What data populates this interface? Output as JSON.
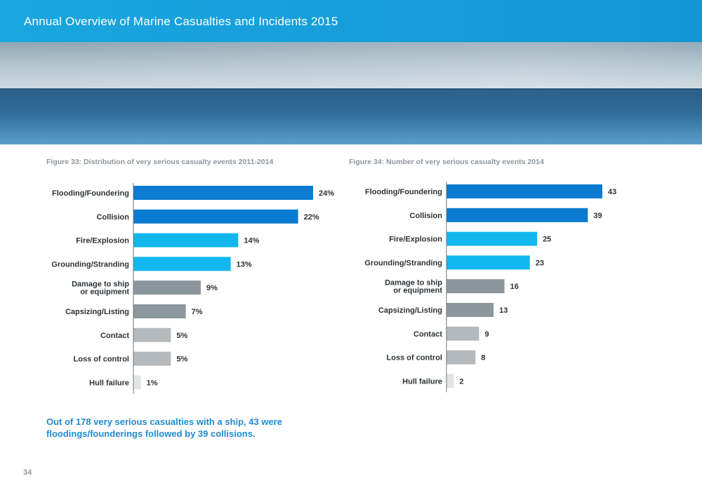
{
  "header": {
    "title": "Annual Overview of Marine Casualties and Incidents 2015"
  },
  "colors": {
    "header_blue": "#1a9fdb",
    "dark_blue": "#0a7bd0",
    "light_blue": "#12b7ef",
    "dark_grey": "#8c969d",
    "mid_grey": "#b3b9bd",
    "light_grey": "#e1e3e4",
    "summary_blue": "#1e8bd3"
  },
  "chart_data": [
    {
      "type": "bar",
      "orientation": "horizontal",
      "title": "Figure 33: Distribution of very serious casualty events 2011-2014",
      "categories": [
        [
          "Flooding/Foundering"
        ],
        [
          "Collision"
        ],
        [
          "Fire/Explosion"
        ],
        [
          "Grounding/Stranding"
        ],
        [
          "Damage to ship",
          "or equipment"
        ],
        [
          "Capsizing/Listing"
        ],
        [
          "Contact"
        ],
        [
          "Loss of control"
        ],
        [
          "Hull failure"
        ]
      ],
      "values": [
        24,
        22,
        14,
        13,
        9,
        7,
        5,
        5,
        1
      ],
      "value_labels": [
        "24%",
        "22%",
        "14%",
        "13%",
        "9%",
        "7%",
        "5%",
        "5%",
        "1%"
      ],
      "bar_colors": [
        "#0a7bd0",
        "#0a7bd0",
        "#12b7ef",
        "#12b7ef",
        "#8c969d",
        "#8c969d",
        "#b3b9bd",
        "#b3b9bd",
        "#e1e3e4"
      ],
      "xlim": [
        0,
        24
      ]
    },
    {
      "type": "bar",
      "orientation": "horizontal",
      "title": "Figure 34: Number of very serious casualty events 2014",
      "categories": [
        [
          "Flooding/Foundering"
        ],
        [
          "Collision"
        ],
        [
          "Fire/Explosion"
        ],
        [
          "Grounding/Stranding"
        ],
        [
          "Damage to ship",
          "or equipment"
        ],
        [
          "Capsizing/Listing"
        ],
        [
          "Contact"
        ],
        [
          "Loss of control"
        ],
        [
          "Hull failure"
        ]
      ],
      "values": [
        43,
        39,
        25,
        23,
        16,
        13,
        9,
        8,
        2
      ],
      "value_labels": [
        "43",
        "39",
        "25",
        "23",
        "16",
        "13",
        "9",
        "8",
        "2"
      ],
      "bar_colors": [
        "#0a7bd0",
        "#0a7bd0",
        "#12b7ef",
        "#12b7ef",
        "#8c969d",
        "#8c969d",
        "#b3b9bd",
        "#b3b9bd",
        "#e1e3e4"
      ],
      "xlim": [
        0,
        43
      ]
    }
  ],
  "summary": {
    "line1": "Out of 178 very serious casualties with a ship, 43 were",
    "line2": "floodings/founderings followed by 39 collisions."
  },
  "page_number": "34"
}
